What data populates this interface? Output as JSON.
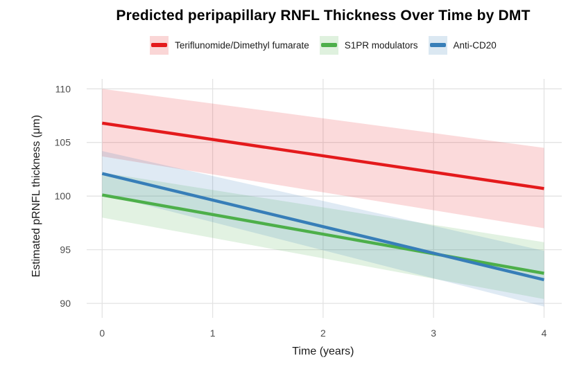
{
  "chart_data": {
    "type": "line",
    "title": "Predicted peripapillary RNFL Thickness Over Time by DMT",
    "xlabel": "Time (years)",
    "ylabel": "Estimated pRNFL thickness (μm)",
    "legend_position": "top-center",
    "grid": "major-only",
    "x": [
      0,
      4
    ],
    "xticks": [
      0,
      1,
      2,
      3,
      4
    ],
    "yticks": [
      90,
      95,
      100,
      105,
      110
    ],
    "xlim": [
      -0.14,
      4.16
    ],
    "ylim": [
      88.65,
      110.92
    ],
    "ribbon_opacity": 0.16,
    "series": [
      {
        "name": "Teriflunomide/Dimethyl fumarate",
        "color": "#E41A1C",
        "values": [
          106.8,
          100.7
        ],
        "ci_upper": [
          110.0,
          104.5
        ],
        "ci_lower": [
          103.7,
          97.0
        ]
      },
      {
        "name": "S1PR modulators",
        "color": "#4DAF4A",
        "values": [
          100.1,
          92.8
        ],
        "ci_upper": [
          102.2,
          95.7
        ],
        "ci_lower": [
          98.0,
          90.4
        ]
      },
      {
        "name": "Anti-CD20",
        "color": "#377EB8",
        "values": [
          102.1,
          92.2
        ],
        "ci_upper": [
          104.2,
          94.9
        ],
        "ci_lower": [
          100.2,
          89.7
        ]
      }
    ],
    "colors": {
      "grid": "#E3E3E3",
      "tick_label": "#4D4D4D",
      "axis_title": "#1A1A1A",
      "title": "#000000",
      "background": "#FFFFFF"
    }
  }
}
